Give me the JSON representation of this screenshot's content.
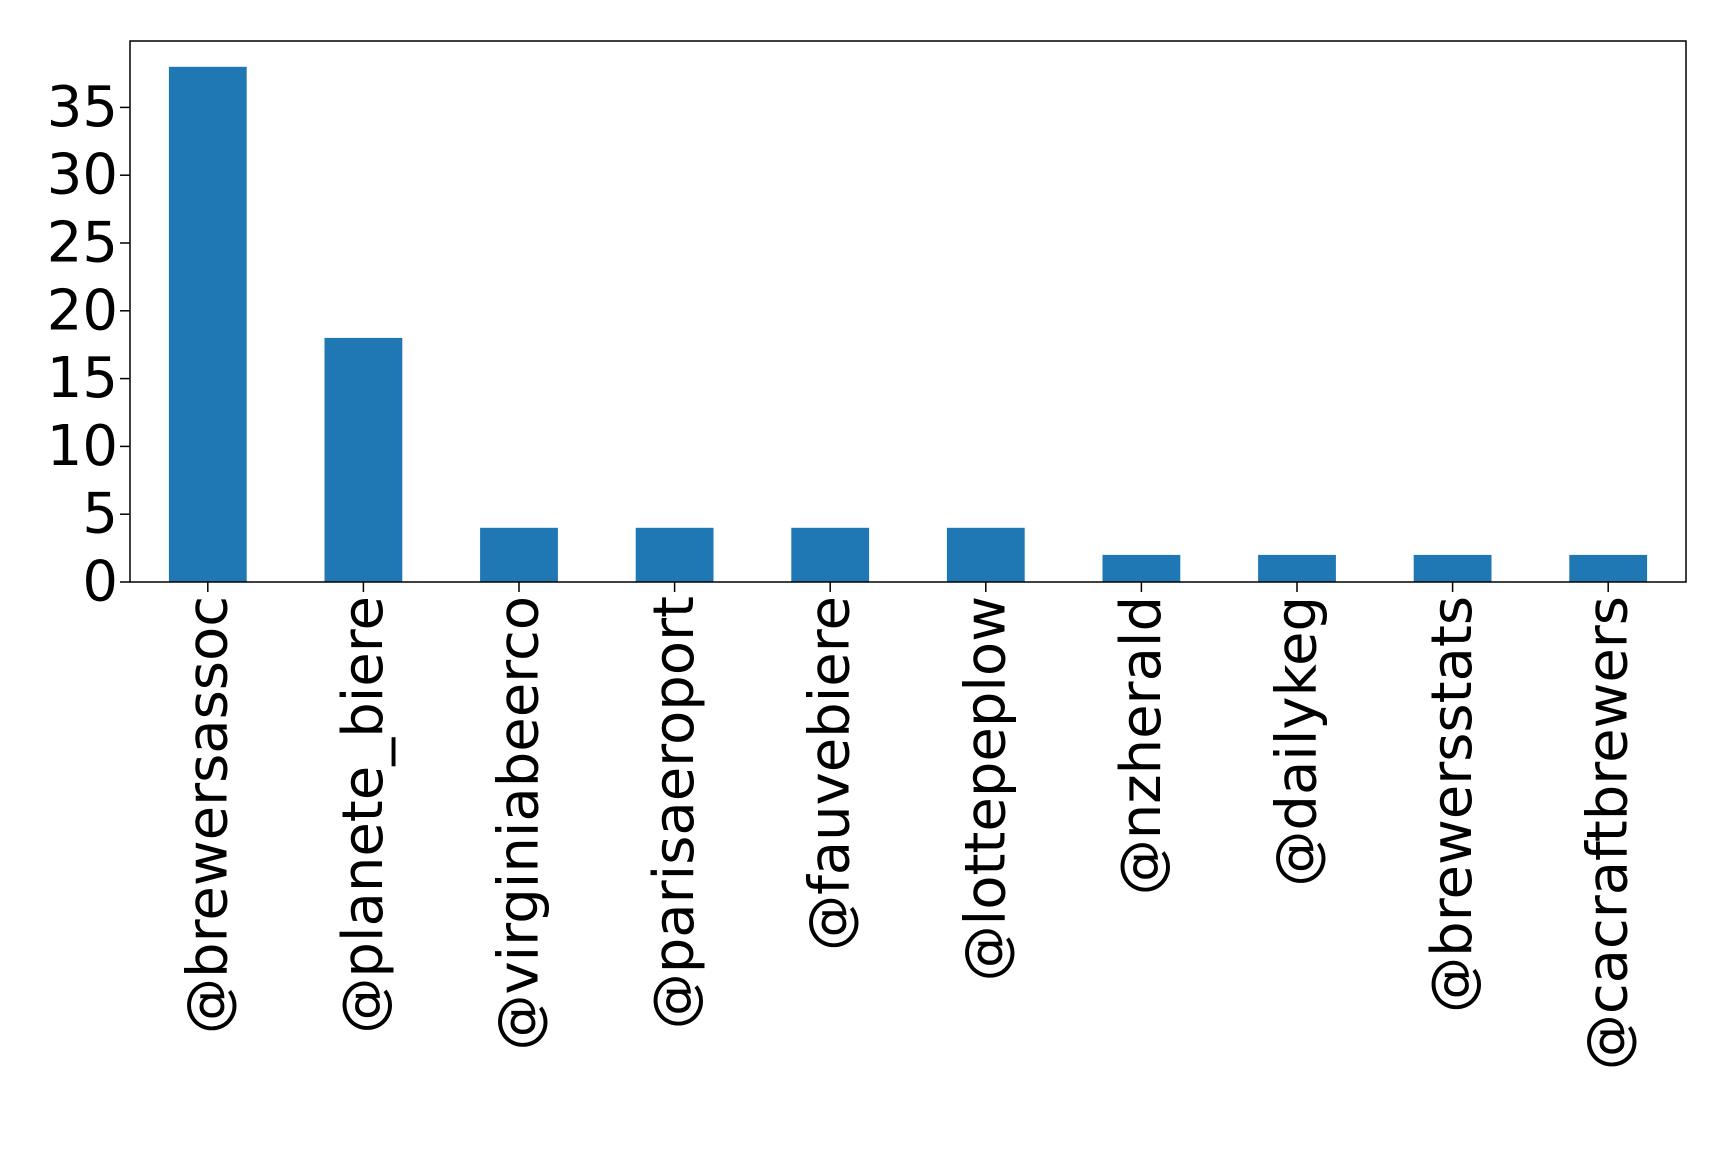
{
  "chart_data": {
    "type": "bar",
    "categories": [
      "@brewersassoc",
      "@planete_biere",
      "@virginiabeerco",
      "@parisaeroport",
      "@fauvebiere",
      "@lottepeplow",
      "@nzherald",
      "@dailykeg",
      "@brewersstats",
      "@cacraftbrewers"
    ],
    "values": [
      38,
      18,
      4,
      4,
      4,
      4,
      2,
      2,
      2,
      2
    ],
    "yticks": [
      0,
      5,
      10,
      15,
      20,
      25,
      30,
      35
    ],
    "ylim": [
      0,
      39.9
    ],
    "title": "",
    "xlabel": "",
    "ylabel": "",
    "grid": false,
    "bar_color": "#1f77b4"
  }
}
